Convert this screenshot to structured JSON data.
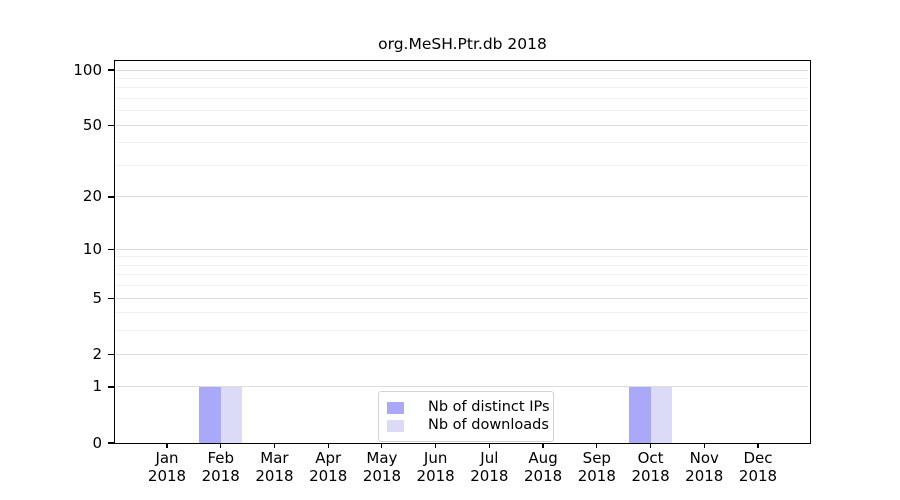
{
  "title": "org.MeSH.Ptr.db 2018",
  "chart_data": {
    "type": "bar",
    "title": "org.MeSH.Ptr.db 2018",
    "categories": [
      "Jan",
      "Feb",
      "Mar",
      "Apr",
      "May",
      "Jun",
      "Jul",
      "Aug",
      "Sep",
      "Oct",
      "Nov",
      "Dec"
    ],
    "category_year": "2018",
    "series": [
      {
        "name": "Nb of distinct IPs",
        "color": "#a9a9f7",
        "values": [
          0,
          1,
          0,
          0,
          0,
          0,
          0,
          0,
          0,
          1,
          0,
          0
        ]
      },
      {
        "name": "Nb of downloads",
        "color": "#dbdbf8",
        "values": [
          0,
          1,
          0,
          0,
          0,
          0,
          0,
          0,
          0,
          1,
          0,
          0
        ]
      }
    ],
    "yscale": "log1p",
    "ylim": [
      0,
      112
    ],
    "yticks": [
      0,
      1,
      2,
      5,
      10,
      20,
      50,
      100
    ],
    "yminorticks": [
      3,
      4,
      6,
      7,
      8,
      9,
      30,
      40,
      60,
      70,
      80,
      90
    ],
    "grid": true,
    "legend_position": "lower center",
    "xlabel": "",
    "ylabel": ""
  },
  "colors": {
    "grid_major": "#dcdcdc",
    "grid_minor": "#f1f1f1",
    "axis": "#000000",
    "legend_border": "#d3d3d3",
    "bar_distinct_ips": "#a9a9f7",
    "bar_downloads": "#dbdbf8"
  }
}
